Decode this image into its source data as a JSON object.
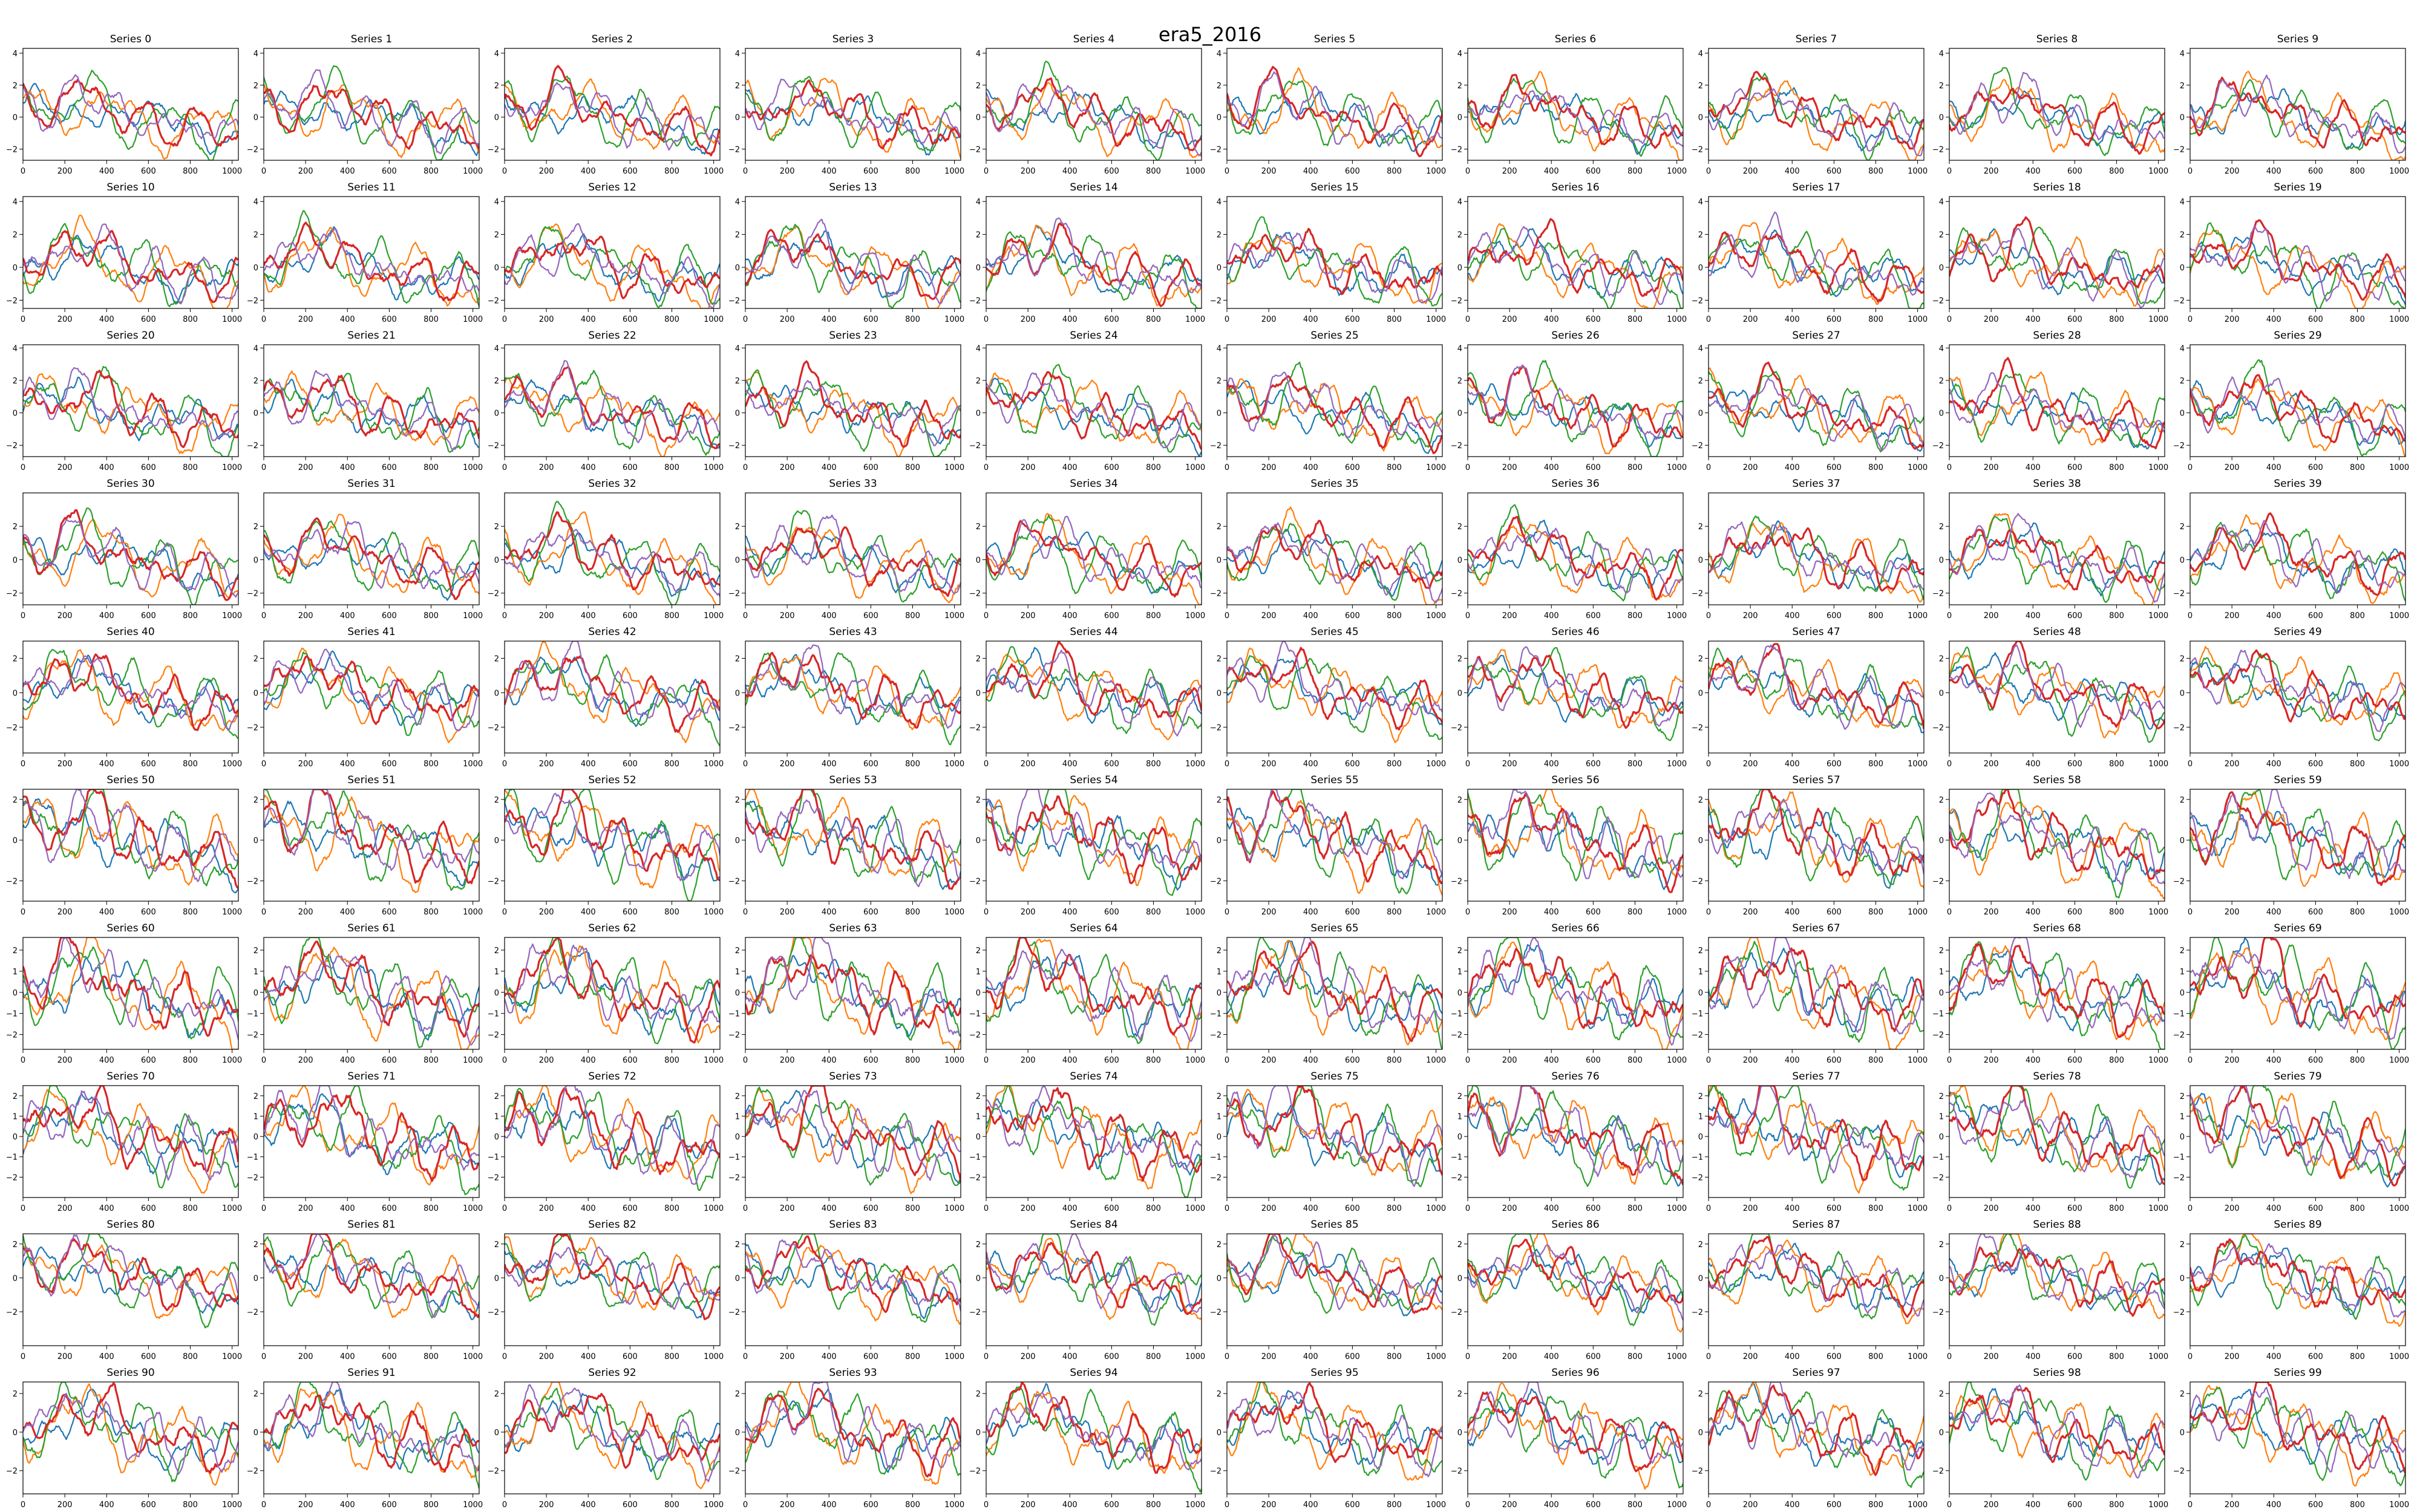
{
  "figure": {
    "title": "era5_2016"
  },
  "chart_data": {
    "type": "line",
    "grid": "10x10 small multiples",
    "grid_lines": false,
    "legend": "none",
    "xlim": [
      0,
      1030
    ],
    "xticks": [
      0,
      200,
      400,
      600,
      800,
      1000
    ],
    "series_colors": [
      "#1f77b4",
      "#ff7f0e",
      "#2ca02c",
      "#d62728",
      "#9467bd"
    ],
    "panel_titles": [
      "Series 0",
      "Series 1",
      "Series 2",
      "Series 3",
      "Series 4",
      "Series 5",
      "Series 6",
      "Series 7",
      "Series 8",
      "Series 9",
      "Series 10",
      "Series 11",
      "Series 12",
      "Series 13",
      "Series 14",
      "Series 15",
      "Series 16",
      "Series 17",
      "Series 18",
      "Series 19",
      "Series 20",
      "Series 21",
      "Series 22",
      "Series 23",
      "Series 24",
      "Series 25",
      "Series 26",
      "Series 27",
      "Series 28",
      "Series 29",
      "Series 30",
      "Series 31",
      "Series 32",
      "Series 33",
      "Series 34",
      "Series 35",
      "Series 36",
      "Series 37",
      "Series 38",
      "Series 39",
      "Series 40",
      "Series 41",
      "Series 42",
      "Series 43",
      "Series 44",
      "Series 45",
      "Series 46",
      "Series 47",
      "Series 48",
      "Series 49",
      "Series 50",
      "Series 51",
      "Series 52",
      "Series 53",
      "Series 54",
      "Series 55",
      "Series 56",
      "Series 57",
      "Series 58",
      "Series 59",
      "Series 60",
      "Series 61",
      "Series 62",
      "Series 63",
      "Series 64",
      "Series 65",
      "Series 66",
      "Series 67",
      "Series 68",
      "Series 69",
      "Series 70",
      "Series 71",
      "Series 72",
      "Series 73",
      "Series 74",
      "Series 75",
      "Series 76",
      "Series 77",
      "Series 78",
      "Series 79",
      "Series 80",
      "Series 81",
      "Series 82",
      "Series 83",
      "Series 84",
      "Series 85",
      "Series 86",
      "Series 87",
      "Series 88",
      "Series 89",
      "Series 90",
      "Series 91",
      "Series 92",
      "Series 93",
      "Series 94",
      "Series 95",
      "Series 96",
      "Series 97",
      "Series 98",
      "Series 99"
    ],
    "row_ylim": [
      [
        -2.7,
        4.3
      ],
      [
        -2.5,
        4.3
      ],
      [
        -2.7,
        4.2
      ],
      [
        -2.7,
        4.0
      ],
      [
        -3.5,
        3.0
      ],
      [
        -3.0,
        2.5
      ],
      [
        -2.7,
        2.6
      ],
      [
        -3.0,
        2.5
      ],
      [
        -4.0,
        2.6
      ],
      [
        -3.2,
        2.6
      ]
    ],
    "row_yticks": [
      [
        -2,
        0,
        2,
        4
      ],
      [
        -2,
        0,
        2,
        4
      ],
      [
        -2,
        0,
        2,
        4
      ],
      [
        -2,
        0,
        2
      ],
      [
        -2,
        0,
        2
      ],
      [
        -2,
        0,
        2
      ],
      [
        -2,
        -1,
        0,
        1,
        2
      ],
      [
        -2,
        -1,
        0,
        1,
        2
      ],
      [
        -2,
        0,
        2
      ],
      [
        -2,
        0,
        2
      ]
    ]
  }
}
